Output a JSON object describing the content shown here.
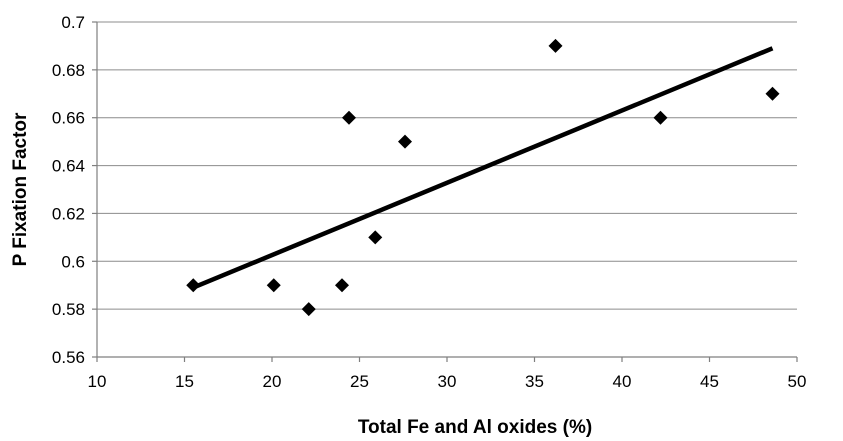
{
  "chart_data": {
    "type": "scatter",
    "title": "",
    "xlabel": "Total Fe and Al oxides (%)",
    "ylabel": "P Fixation Factor",
    "xlim": [
      10,
      50
    ],
    "ylim": [
      0.56,
      0.7
    ],
    "xticks": [
      10,
      15,
      20,
      25,
      30,
      35,
      40,
      45,
      50
    ],
    "yticks": [
      0.56,
      0.58,
      0.6,
      0.62,
      0.64,
      0.66,
      0.68,
      0.7
    ],
    "xtick_labels": [
      "10",
      "15",
      "20",
      "25",
      "30",
      "35",
      "40",
      "45",
      "50"
    ],
    "ytick_labels": [
      "0.56",
      "0.58",
      "0.6",
      "0.62",
      "0.64",
      "0.66",
      "0.68",
      "0.7"
    ],
    "grid": "horizontal",
    "marker": "diamond",
    "points": [
      {
        "x": 15.5,
        "y": 0.59
      },
      {
        "x": 20.1,
        "y": 0.59
      },
      {
        "x": 22.1,
        "y": 0.58
      },
      {
        "x": 24.0,
        "y": 0.59
      },
      {
        "x": 24.4,
        "y": 0.66
      },
      {
        "x": 25.9,
        "y": 0.61
      },
      {
        "x": 27.6,
        "y": 0.65
      },
      {
        "x": 36.2,
        "y": 0.69
      },
      {
        "x": 42.2,
        "y": 0.66
      },
      {
        "x": 48.6,
        "y": 0.67
      }
    ],
    "trendline": {
      "type": "linear",
      "x": [
        15.5,
        48.6
      ],
      "y": [
        0.589,
        0.689
      ]
    }
  }
}
